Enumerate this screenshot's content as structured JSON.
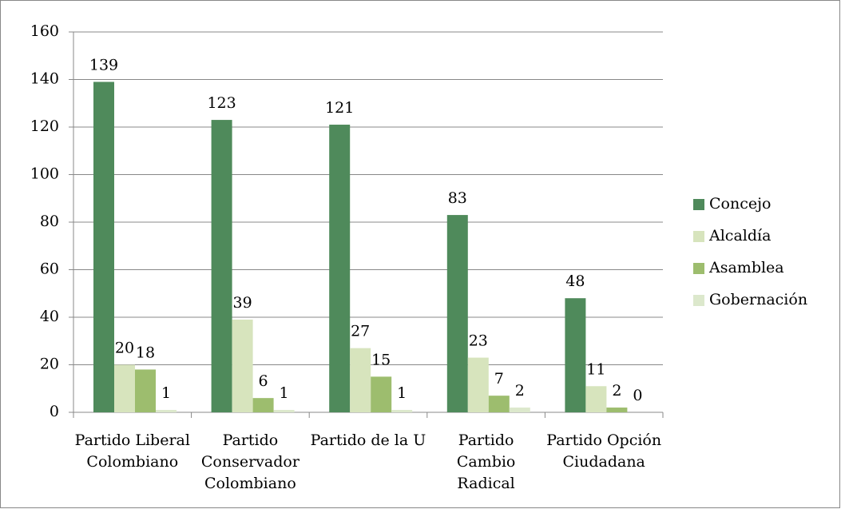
{
  "chart_data": {
    "type": "bar",
    "categories": [
      "Partido Liberal Colombiano",
      "Partido Conservador Colombiano",
      "Partido de la U",
      "Partido Cambio Radical",
      "Partido Opción Ciudadana"
    ],
    "series": [
      {
        "name": "Concejo",
        "color": "#4f8a5b",
        "values": [
          139,
          123,
          121,
          83,
          48
        ]
      },
      {
        "name": "Alcaldía",
        "color": "#d7e4bd",
        "values": [
          20,
          39,
          27,
          23,
          11
        ]
      },
      {
        "name": "Asamblea",
        "color": "#9dbd6e",
        "values": [
          18,
          6,
          15,
          7,
          2
        ]
      },
      {
        "name": "Gobernación",
        "color": "#dce8cc",
        "values": [
          1,
          1,
          1,
          2,
          0
        ]
      }
    ],
    "ylim": [
      0,
      160
    ],
    "yticks": [
      0,
      20,
      40,
      60,
      80,
      100,
      120,
      140,
      160
    ],
    "grid": true,
    "legend": "right"
  }
}
